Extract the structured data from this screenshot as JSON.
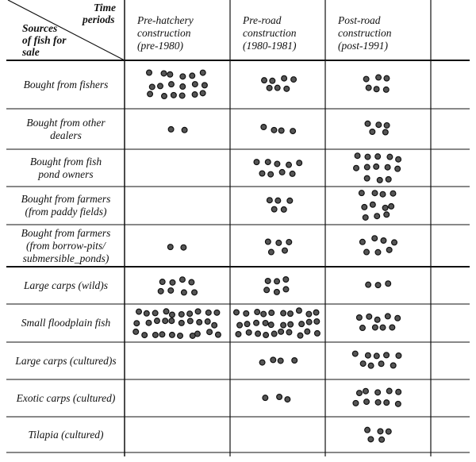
{
  "header": {
    "corner_top": [
      "Time",
      "periods"
    ],
    "corner_bottom": [
      "Sources",
      "of fish for",
      "sale"
    ],
    "columns": [
      [
        "Pre-hatchery",
        "construction",
        "(pre-1980)"
      ],
      [
        "Pre-road",
        "construction",
        "(1980-1981)"
      ],
      [
        "Post-road",
        "construction",
        "(post-1991)"
      ]
    ]
  },
  "table": {
    "rows": [
      {
        "label": [
          "Bought from fishers"
        ],
        "counts": [
          18,
          7,
          6
        ]
      },
      {
        "label": [
          "Bought from other",
          "dealers"
        ],
        "counts": [
          2,
          4,
          5
        ]
      },
      {
        "label": [
          "Bought from fish",
          "pond owners"
        ],
        "counts": [
          0,
          9,
          13
        ]
      },
      {
        "label": [
          "Bought from farmers",
          "(from paddy fields)"
        ],
        "counts": [
          0,
          5,
          11
        ]
      },
      {
        "label": [
          "Bought from farmers",
          "(from borrow-pits/",
          "submersible_ponds)"
        ],
        "counts": [
          2,
          5,
          7
        ]
      },
      {
        "label": [
          "Large carps (wild)s"
        ],
        "counts": [
          8,
          6,
          3
        ]
      },
      {
        "label": [
          "Small floodplain fish"
        ],
        "counts": [
          30,
          30,
          9
        ]
      },
      {
        "label": [
          "Large carps (cultured)s"
        ],
        "counts": [
          0,
          4,
          9
        ]
      },
      {
        "label": [
          "Exotic carps (cultured)"
        ],
        "counts": [
          0,
          3,
          10
        ]
      },
      {
        "label": [
          "Tilapia (cultured)"
        ],
        "counts": [
          0,
          0,
          5
        ]
      }
    ]
  }
}
